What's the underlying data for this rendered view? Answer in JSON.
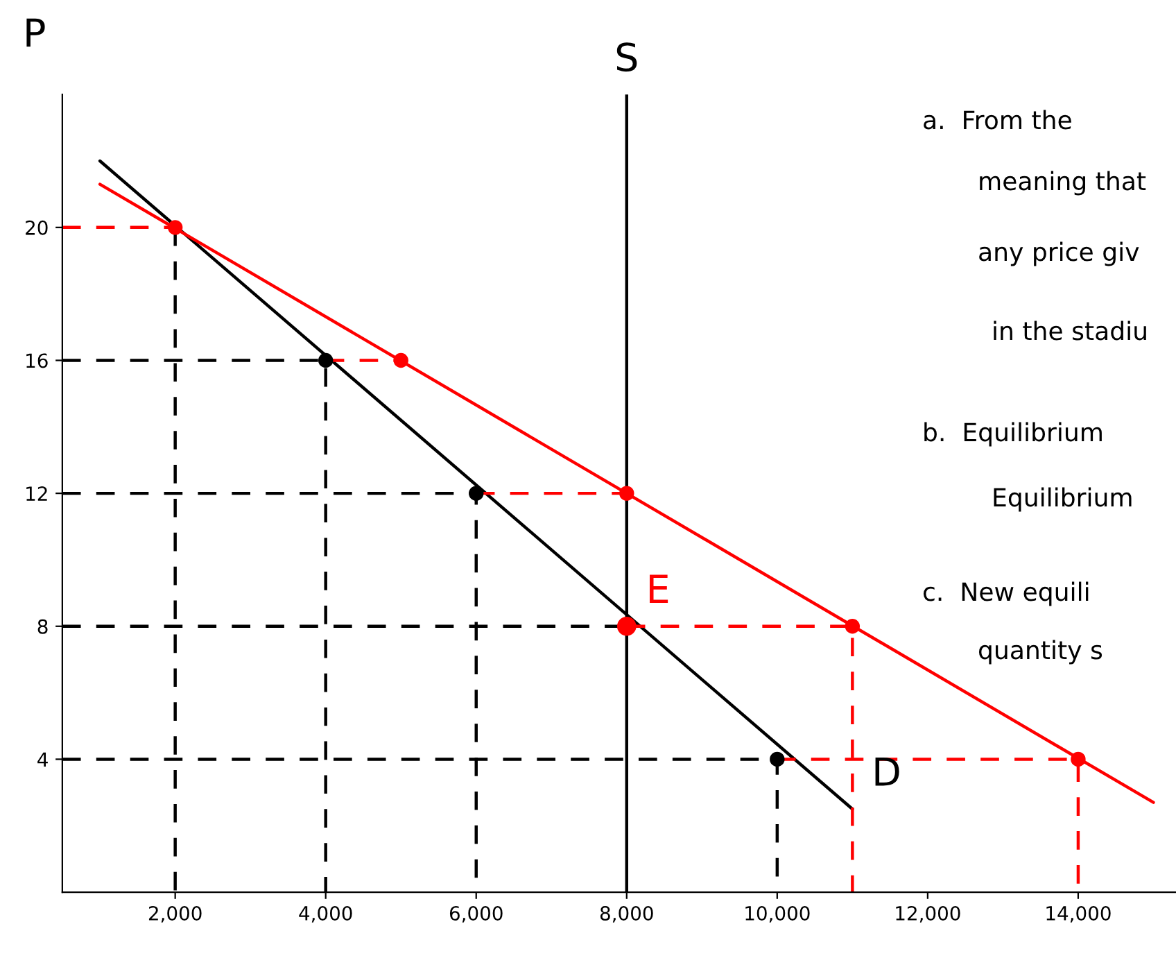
{
  "chart_data": {
    "type": "line",
    "ylabel": "P",
    "xlim": [
      500,
      15300
    ],
    "ylim": [
      0,
      24
    ],
    "xticks": [
      {
        "value": 2000,
        "label": "2,000"
      },
      {
        "value": 4000,
        "label": "4,000"
      },
      {
        "value": 6000,
        "label": "6,000"
      },
      {
        "value": 8000,
        "label": "8,000"
      },
      {
        "value": 10000,
        "label": "10,000"
      },
      {
        "value": 12000,
        "label": "12,000"
      },
      {
        "value": 14000,
        "label": "14,000"
      }
    ],
    "yticks": [
      4,
      8,
      12,
      16,
      20
    ],
    "legend": false,
    "ref_lines": [
      {
        "axis": "x",
        "value": 8000,
        "label": "S",
        "color": "#000000",
        "line_style": "solid"
      }
    ],
    "series": [
      {
        "name": "D",
        "color": "#000000",
        "x": [
          1000,
          11000
        ],
        "values": [
          22,
          2.5
        ],
        "line_style": "solid",
        "marker": "none"
      },
      {
        "color": "#ff0000",
        "x": [
          1000,
          15000
        ],
        "values": [
          21.3,
          2.7
        ],
        "line_style": "solid",
        "marker": "none"
      },
      {
        "color": "#000000",
        "x": [
          2000,
          2000
        ],
        "values": [
          20,
          0
        ],
        "line_style": "dashed",
        "marker": "none"
      },
      {
        "color": "#000000",
        "x": [
          500,
          4000,
          4000
        ],
        "values": [
          16,
          16,
          0
        ],
        "line_style": "dashed",
        "marker": "none"
      },
      {
        "color": "#000000",
        "x": [
          500,
          6000,
          6000
        ],
        "values": [
          12,
          12,
          0
        ],
        "line_style": "dashed",
        "marker": "none"
      },
      {
        "color": "#000000",
        "x": [
          500,
          8000
        ],
        "values": [
          8,
          8
        ],
        "line_style": "dashed",
        "marker": "none"
      },
      {
        "color": "#000000",
        "x": [
          500,
          10000,
          10000
        ],
        "values": [
          4,
          4,
          0
        ],
        "line_style": "dashed",
        "marker": "none"
      },
      {
        "color": "#ff0000",
        "x": [
          500,
          2000
        ],
        "values": [
          20,
          20
        ],
        "line_style": "dashed",
        "marker": "none"
      },
      {
        "color": "#ff0000",
        "x": [
          4000,
          5000
        ],
        "values": [
          16,
          16
        ],
        "line_style": "dashed",
        "marker": "none"
      },
      {
        "color": "#ff0000",
        "x": [
          6000,
          8000
        ],
        "values": [
          12,
          12
        ],
        "line_style": "dashed",
        "marker": "none"
      },
      {
        "color": "#ff0000",
        "x": [
          8000,
          11000,
          11000
        ],
        "values": [
          8,
          8,
          0
        ],
        "line_style": "dashed",
        "marker": "none"
      },
      {
        "color": "#ff0000",
        "x": [
          10000,
          14000,
          14000
        ],
        "values": [
          4,
          4,
          0
        ],
        "line_style": "dashed",
        "marker": "none"
      },
      {
        "type": "scatter",
        "color": "#000000",
        "x": [
          4000,
          6000,
          10000
        ],
        "values": [
          16,
          12,
          4
        ],
        "marker": "circle"
      },
      {
        "type": "scatter",
        "color": "#ff0000",
        "x": [
          2000,
          5000,
          8000,
          11000,
          14000
        ],
        "values": [
          20,
          16,
          12,
          8,
          4
        ],
        "marker": "circle"
      },
      {
        "name": "E",
        "type": "scatter",
        "color": "#ff0000",
        "x": [
          8000
        ],
        "values": [
          8
        ],
        "marker": "circle"
      }
    ],
    "annotations": [
      "a.  From the",
      "meaning that",
      "any price giv",
      "in the stadiu",
      "b.  Equilibrium",
      "Equilibrium",
      "c.  New equili",
      "quantity s"
    ]
  }
}
